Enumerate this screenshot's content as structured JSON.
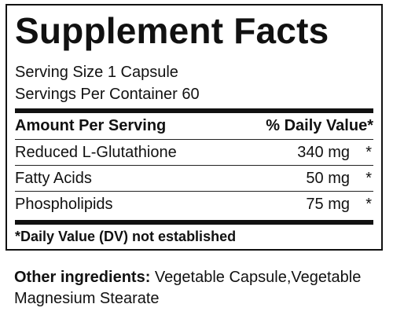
{
  "panel": {
    "title": "Supplement Facts",
    "serving_size": "Serving Size 1 Capsule",
    "servings_per_container": "Servings Per Container 60",
    "header": {
      "amount_label": "Amount Per Serving",
      "dv_label": "% Daily Value*"
    },
    "rows": [
      {
        "name": "Reduced L-Glutathione",
        "amount": "340 mg",
        "dv": "*"
      },
      {
        "name": "Fatty Acids",
        "amount": "50 mg",
        "dv": "*"
      },
      {
        "name": "Phospholipids",
        "amount": "75 mg",
        "dv": "*"
      }
    ],
    "footnote": "*Daily Value (DV) not established"
  },
  "other_ingredients": {
    "label": "Other ingredients:",
    "text": " Vegetable Capsule,Vegetable Magnesium Stearate"
  }
}
